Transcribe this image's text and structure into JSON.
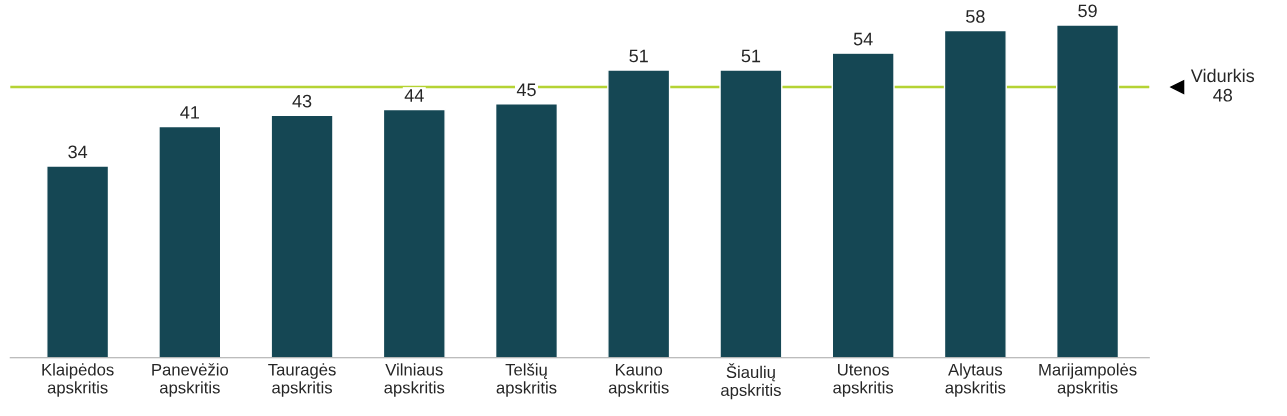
{
  "chart_data": {
    "type": "bar",
    "categories": [
      "Klaipėdos\napskritis",
      "Panevėžio\napskritis",
      "Tauragės\napskritis",
      "Vilniaus\napskritis",
      "Telšių\napskritis",
      "Kauno\napskritis",
      "Šiaulių\napskritis",
      "Utenos\napskritis",
      "Alytaus\napskritis",
      "Marijampolės\napskritis"
    ],
    "values": [
      34,
      41,
      43,
      44,
      45,
      51,
      51,
      54,
      58,
      59
    ],
    "color": "#154754",
    "tick_labels": "x",
    "data_labels": true,
    "grid": false,
    "legend": false,
    "ref_lines": [
      {
        "axis": "y",
        "value": 48,
        "label": "Vidurkis\n48",
        "color": "#b5d334"
      }
    ]
  }
}
